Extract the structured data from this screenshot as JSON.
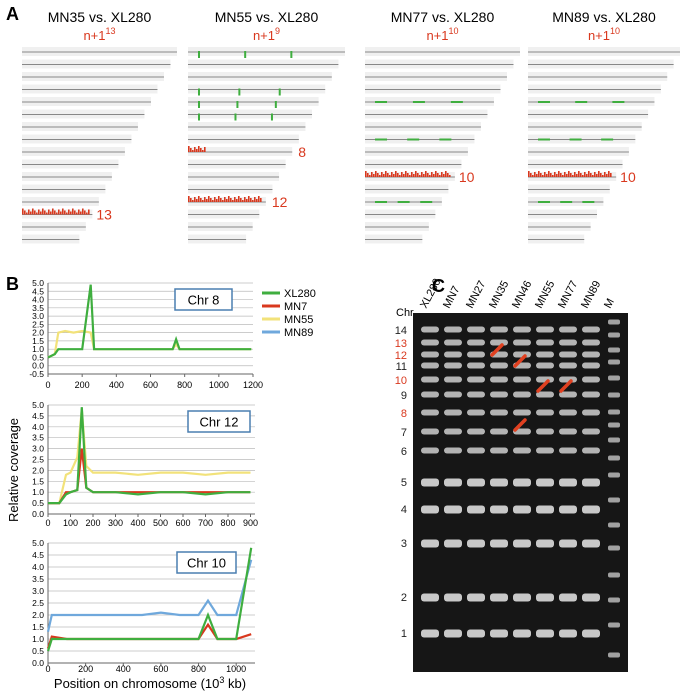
{
  "panel_a": {
    "label": "A",
    "columns": [
      {
        "title": "MN35 vs. XL280",
        "subtitle": {
          "base": "n+1",
          "sup": "13"
        },
        "marks": [
          "13"
        ]
      },
      {
        "title": "MN55 vs. XL280",
        "subtitle": {
          "base": "n+1",
          "sup": "9"
        },
        "marks": [
          "8",
          "12"
        ]
      },
      {
        "title": "MN77 vs. XL280",
        "subtitle": {
          "base": "n+1",
          "sup": "10"
        },
        "marks": [
          "10"
        ]
      },
      {
        "title": "MN89 vs. XL280",
        "subtitle": {
          "base": "n+1",
          "sup": "10"
        },
        "marks": [
          "10"
        ]
      }
    ]
  },
  "panel_b": {
    "label": "B",
    "ylabel": "Relative coverage",
    "xlabel": {
      "base": "Position on chromosome (10",
      "sup": "3",
      "rest": " kb)"
    },
    "legend": [
      {
        "name": "XL280",
        "color": "#3fae3f"
      },
      {
        "name": "MN7",
        "color": "#d9381e"
      },
      {
        "name": "MN55",
        "color": "#f2e27a"
      },
      {
        "name": "MN89",
        "color": "#6fa8dc"
      }
    ],
    "chart_data": [
      {
        "type": "line",
        "title": "Chr 8",
        "x": [
          0,
          40,
          60,
          100,
          150,
          200,
          250,
          270,
          400,
          600,
          730,
          750,
          770,
          900,
          1100,
          1190
        ],
        "series": [
          {
            "name": "MN55",
            "color": "#f2e27a",
            "values": [
              0.5,
              0.7,
              2.0,
              2.1,
              2.0,
              2.1,
              2.0,
              1.0,
              1.0,
              1.0,
              1.0,
              1.3,
              1.0,
              1.0,
              1.0,
              1.0
            ]
          },
          {
            "name": "XL280",
            "color": "#3fae3f",
            "values": [
              0.5,
              0.7,
              1.0,
              1.0,
              1.0,
              1.0,
              4.9,
              1.0,
              1.0,
              1.0,
              1.0,
              1.6,
              1.0,
              1.0,
              1.0,
              1.0
            ]
          }
        ],
        "xlim": [
          0,
          1200
        ],
        "xticks": [
          0,
          200,
          400,
          600,
          800,
          1000,
          1200
        ],
        "ylim": [
          -0.5,
          5.0
        ],
        "yticks": [
          {
            "value": -0.5,
            "label": "-0.5"
          },
          {
            "value": 0,
            "label": "0.0"
          },
          0.5,
          {
            "value": 1,
            "label": "1.0"
          },
          1.5,
          {
            "value": 2,
            "label": "2.0"
          },
          2.5,
          {
            "value": 3,
            "label": "3.0"
          },
          3.5,
          {
            "value": 4,
            "label": "4.0"
          },
          4.5,
          {
            "value": 5,
            "label": "5.0"
          }
        ],
        "grid": true
      },
      {
        "type": "line",
        "title": "Chr 12",
        "x": [
          0,
          50,
          80,
          100,
          130,
          150,
          170,
          200,
          300,
          400,
          500,
          600,
          700,
          800,
          900
        ],
        "series": [
          {
            "name": "MN55",
            "color": "#f2e27a",
            "values": [
              0.5,
              0.5,
              1.8,
              1.9,
              2.6,
              4.8,
              2.2,
              1.9,
              1.9,
              1.8,
              1.9,
              1.9,
              1.8,
              1.9,
              1.9
            ]
          },
          {
            "name": "MN7",
            "color": "#d9381e",
            "values": [
              0.5,
              0.5,
              1.0,
              1.0,
              1.1,
              3.0,
              1.2,
              1.0,
              1.0,
              1.0,
              1.0,
              1.0,
              1.0,
              1.0,
              1.0
            ]
          },
          {
            "name": "XL280",
            "color": "#3fae3f",
            "values": [
              0.5,
              0.5,
              0.9,
              1.0,
              1.1,
              4.9,
              1.2,
              1.0,
              1.0,
              0.9,
              1.0,
              1.0,
              0.9,
              1.0,
              1.0
            ]
          }
        ],
        "xlim": [
          0,
          920
        ],
        "xticks": [
          0,
          100,
          200,
          300,
          400,
          500,
          600,
          700,
          800,
          900
        ],
        "ylim": [
          0,
          5.0
        ],
        "yticks": [
          {
            "value": 0,
            "label": "0.0"
          },
          0.5,
          {
            "value": 1,
            "label": "1.0"
          },
          1.5,
          {
            "value": 2,
            "label": "2.0"
          },
          2.5,
          {
            "value": 3,
            "label": "3.0"
          },
          3.5,
          {
            "value": 4,
            "label": "4.0"
          },
          4.5,
          {
            "value": 5,
            "label": "5.0"
          }
        ],
        "grid": true
      },
      {
        "type": "line",
        "title": "Chr 10",
        "x": [
          0,
          20,
          100,
          200,
          300,
          400,
          500,
          600,
          700,
          800,
          850,
          900,
          1000,
          1080
        ],
        "series": [
          {
            "name": "MN89",
            "color": "#6fa8dc",
            "values": [
              1.3,
              2.0,
              2.0,
              2.0,
              2.0,
              2.0,
              2.0,
              2.1,
              2.0,
              2.0,
              2.6,
              2.0,
              2.0,
              4.3
            ]
          },
          {
            "name": "MN7",
            "color": "#d9381e",
            "values": [
              0.6,
              1.1,
              1.0,
              1.0,
              1.0,
              1.0,
              1.0,
              1.0,
              1.0,
              1.0,
              1.6,
              1.0,
              1.0,
              1.2
            ]
          },
          {
            "name": "XL280",
            "color": "#3fae3f",
            "values": [
              0.5,
              1.0,
              1.0,
              1.0,
              1.0,
              1.0,
              1.0,
              1.0,
              1.0,
              1.0,
              2.0,
              1.0,
              1.0,
              4.8
            ]
          }
        ],
        "xlim": [
          0,
          1100
        ],
        "xticks": [
          0,
          200,
          400,
          600,
          800,
          1000
        ],
        "ylim": [
          0,
          5.0
        ],
        "yticks": [
          {
            "value": 0,
            "label": "0.0"
          },
          0.5,
          {
            "value": 1,
            "label": "1.0"
          },
          1.5,
          {
            "value": 2,
            "label": "2.0"
          },
          2.5,
          {
            "value": 3,
            "label": "3.0"
          },
          3.5,
          {
            "value": 4,
            "label": "4.0"
          },
          4.5,
          {
            "value": 5,
            "label": "5.0"
          }
        ],
        "grid": true
      }
    ]
  },
  "panel_c": {
    "label": "C",
    "chr_heading": "Chr",
    "lanes": [
      "XL280",
      "MN7",
      "MN27",
      "MN35",
      "MN46",
      "MN55",
      "MN77",
      "MN89",
      "M"
    ],
    "chr_labels": [
      {
        "label": "14",
        "color": "#222"
      },
      {
        "label": "13",
        "color": "#d9381e"
      },
      {
        "label": "12",
        "color": "#d9381e"
      },
      {
        "label": "11",
        "color": "#222"
      },
      {
        "label": "10",
        "color": "#d9381e"
      },
      {
        "label": "9",
        "color": "#222"
      },
      {
        "label": "8",
        "color": "#d9381e"
      },
      {
        "label": "7",
        "color": "#222"
      },
      {
        "label": "6",
        "color": "#222"
      },
      {
        "label": "5",
        "color": "#222"
      },
      {
        "label": "4",
        "color": "#222"
      },
      {
        "label": "3",
        "color": "#222"
      },
      {
        "label": "2",
        "color": "#222"
      },
      {
        "label": "1",
        "color": "#222"
      }
    ]
  }
}
